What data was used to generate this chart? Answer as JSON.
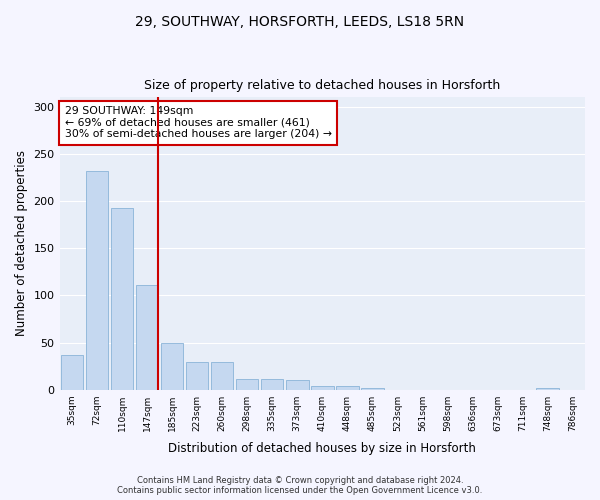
{
  "title1": "29, SOUTHWAY, HORSFORTH, LEEDS, LS18 5RN",
  "title2": "Size of property relative to detached houses in Horsforth",
  "xlabel": "Distribution of detached houses by size in Horsforth",
  "ylabel": "Number of detached properties",
  "categories": [
    "35sqm",
    "72sqm",
    "110sqm",
    "147sqm",
    "185sqm",
    "223sqm",
    "260sqm",
    "298sqm",
    "335sqm",
    "373sqm",
    "410sqm",
    "448sqm",
    "485sqm",
    "523sqm",
    "561sqm",
    "598sqm",
    "636sqm",
    "673sqm",
    "711sqm",
    "748sqm",
    "786sqm"
  ],
  "values": [
    37,
    232,
    193,
    111,
    50,
    29,
    29,
    11,
    11,
    10,
    4,
    4,
    2,
    0,
    0,
    0,
    0,
    0,
    0,
    2,
    0
  ],
  "bar_color": "#c5d8f0",
  "bar_edge_color": "#8ab4d8",
  "highlight_line_color": "#cc0000",
  "annotation_text": "29 SOUTHWAY: 149sqm\n← 69% of detached houses are smaller (461)\n30% of semi-detached houses are larger (204) →",
  "annotation_box_color": "#ffffff",
  "annotation_box_edge": "#cc0000",
  "footer_text": "Contains HM Land Registry data © Crown copyright and database right 2024.\nContains public sector information licensed under the Open Government Licence v3.0.",
  "ylim": [
    0,
    310
  ],
  "yticks": [
    0,
    50,
    100,
    150,
    200,
    250,
    300
  ],
  "bg_color": "#e8eef8",
  "grid_color": "#ffffff",
  "fig_bg_color": "#f5f5ff"
}
